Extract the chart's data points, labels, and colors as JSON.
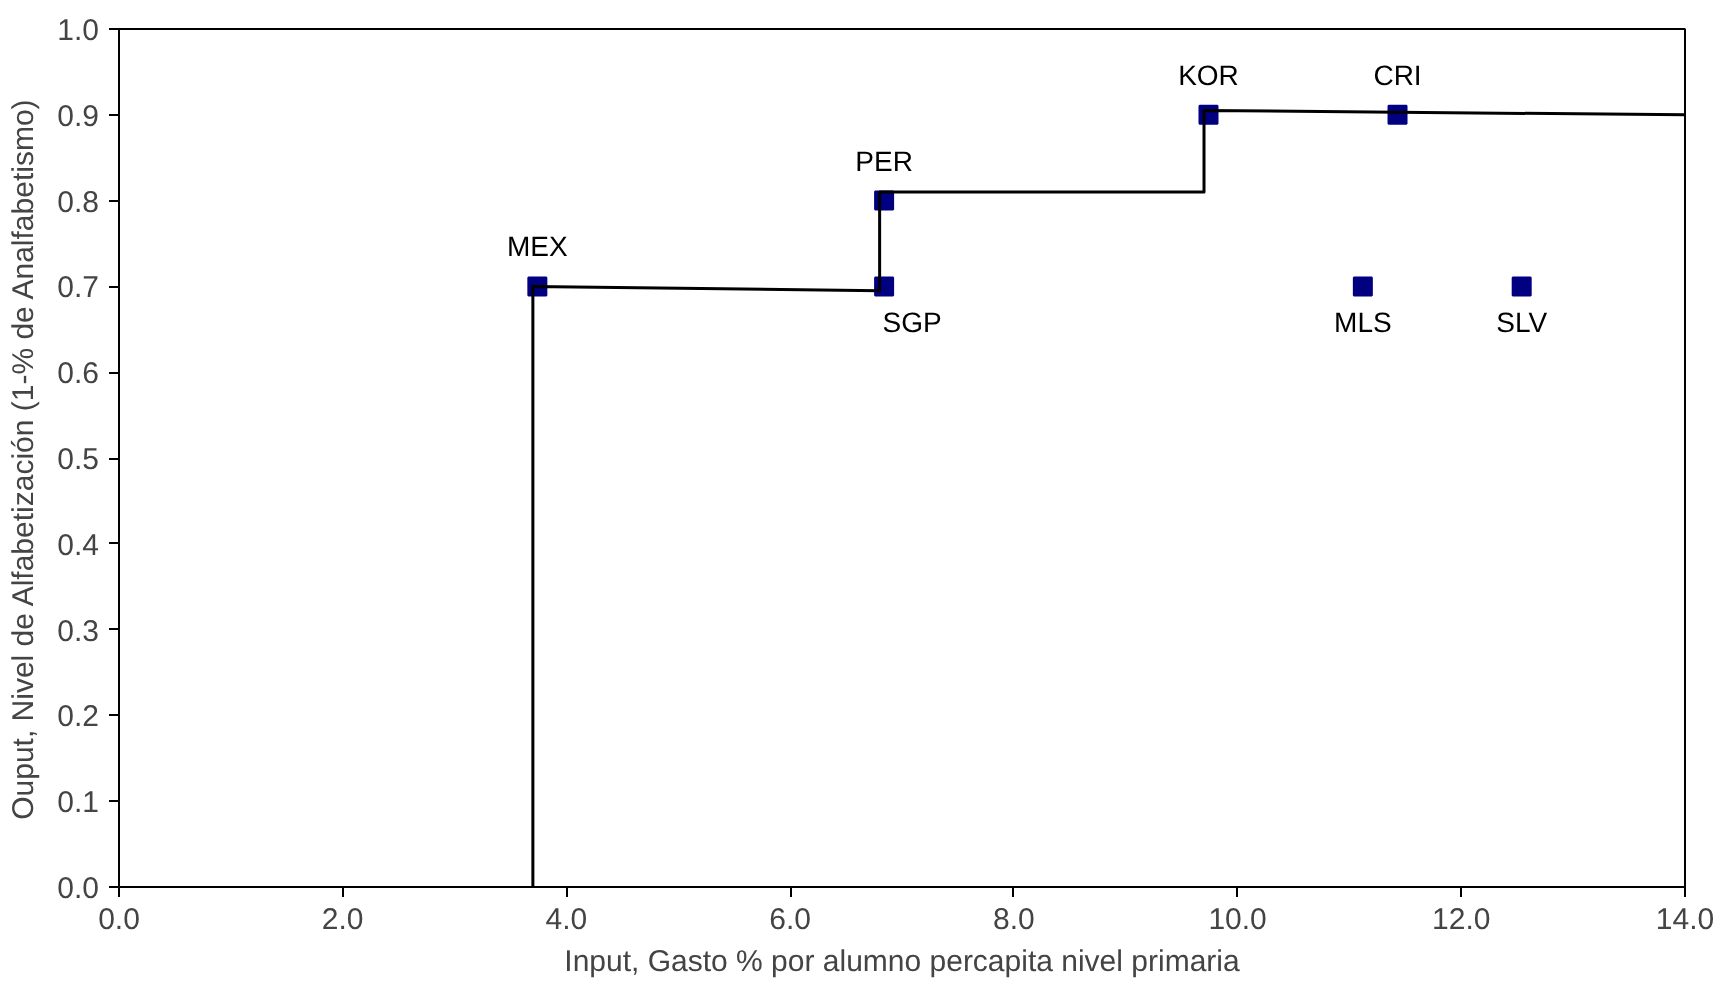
{
  "chart_data": {
    "type": "scatter",
    "xlabel": "Input, Gasto % por alumno percapita nivel primaria",
    "ylabel": "Ouput, Nivel de Alfabetización (1-% de Analfabetismo)",
    "xlim": [
      0,
      14
    ],
    "ylim": [
      0,
      1
    ],
    "xticks": [
      {
        "value": 0,
        "label": "0.0"
      },
      {
        "value": 2,
        "label": "2.0"
      },
      {
        "value": 4,
        "label": "4.0"
      },
      {
        "value": 6,
        "label": "6.0"
      },
      {
        "value": 8,
        "label": "8.0"
      },
      {
        "value": 10,
        "label": "10.0"
      },
      {
        "value": 12,
        "label": "12.0"
      },
      {
        "value": 14,
        "label": "14.0"
      }
    ],
    "yticks": [
      {
        "value": 0,
        "label": "0.0"
      },
      {
        "value": 0.1,
        "label": "0.1"
      },
      {
        "value": 0.2,
        "label": "0.2"
      },
      {
        "value": 0.3,
        "label": "0.3"
      },
      {
        "value": 0.4,
        "label": "0.4"
      },
      {
        "value": 0.5,
        "label": "0.5"
      },
      {
        "value": 0.6,
        "label": "0.6"
      },
      {
        "value": 0.7,
        "label": "0.7"
      },
      {
        "value": 0.8,
        "label": "0.8"
      },
      {
        "value": 0.9,
        "label": "0.9"
      },
      {
        "value": 1,
        "label": "1.0"
      }
    ],
    "grid": false,
    "series": [
      {
        "marker": "square",
        "color": "#000080",
        "x": [
          3.74,
          6.84,
          6.84,
          9.74,
          11.43,
          11.12,
          12.54
        ],
        "values": [
          0.7,
          0.8,
          0.7,
          0.9,
          0.9,
          0.7,
          0.7
        ]
      },
      {
        "type": "line",
        "marker": "none",
        "color": "#000000",
        "x": [
          3.7,
          3.7,
          6.8,
          6.8,
          9.7,
          9.7,
          14
        ],
        "values": [
          0,
          0.7,
          0.695,
          0.81,
          0.81,
          0.905,
          0.9
        ]
      }
    ],
    "annotations": [
      {
        "text": "MEX",
        "x": 3.74,
        "y": 0.7
      },
      {
        "text": "PER",
        "x": 6.84,
        "y": 0.8
      },
      {
        "text": "SGP",
        "x": 6.84,
        "y": 0.7
      },
      {
        "text": "KOR",
        "x": 9.74,
        "y": 0.9
      },
      {
        "text": "CRI",
        "x": 11.43,
        "y": 0.9
      },
      {
        "text": "MLS",
        "x": 11.12,
        "y": 0.7
      },
      {
        "text": "SLV",
        "x": 12.54,
        "y": 0.7
      }
    ]
  }
}
